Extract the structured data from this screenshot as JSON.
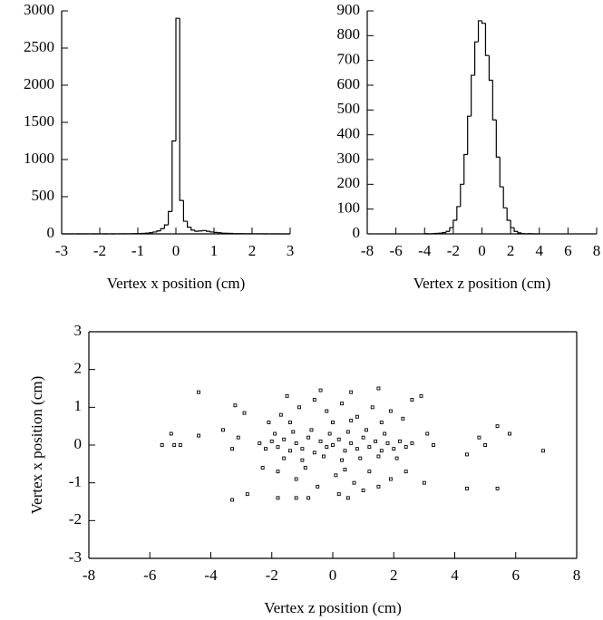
{
  "chart_data": [
    {
      "type": "histogram",
      "xlabel": "Vertex x position (cm)",
      "bins": [
        -3,
        -2.9,
        -2.8,
        -2.7,
        -2.6,
        -2.5,
        -2.4,
        -2.3,
        -2.2,
        -2.1,
        -2,
        -1.9,
        -1.8,
        -1.7,
        -1.6,
        -1.5,
        -1.4,
        -1.3,
        -1.2,
        -1.1,
        -1,
        -0.9,
        -0.8,
        -0.7,
        -0.6,
        -0.5,
        -0.4,
        -0.3,
        -0.2,
        -0.1,
        0,
        0.1,
        0.2,
        0.3,
        0.4,
        0.5,
        0.6,
        0.7,
        0.8,
        0.9,
        1,
        1.1,
        1.2,
        1.3,
        1.4,
        1.5,
        1.6,
        1.7,
        1.8,
        1.9,
        2,
        2.1,
        2.2,
        2.3,
        2.4,
        2.5,
        2.6,
        2.7,
        2.8,
        2.9,
        3
      ],
      "values": [
        0,
        0,
        0,
        1,
        0,
        0,
        0,
        1,
        0,
        0,
        1,
        0,
        1,
        0,
        1,
        1,
        2,
        1,
        2,
        3,
        4,
        6,
        10,
        15,
        25,
        40,
        70,
        120,
        300,
        1250,
        2900,
        450,
        170,
        90,
        50,
        35,
        40,
        45,
        35,
        25,
        20,
        15,
        10,
        8,
        6,
        4,
        3,
        3,
        2,
        2,
        1,
        1,
        1,
        0,
        1,
        0,
        0,
        0,
        0,
        0
      ],
      "color": "#000000",
      "xlim": [
        -3,
        3
      ],
      "xticks": [
        -3,
        -2,
        -1,
        0,
        1,
        2,
        3
      ],
      "ylim": [
        0,
        3000
      ],
      "yticks": [
        0,
        500,
        1000,
        1500,
        2000,
        2500,
        3000
      ]
    },
    {
      "type": "histogram",
      "xlabel": "Vertex z position (cm)",
      "bins": [
        -4,
        -3.75,
        -3.5,
        -3.25,
        -3,
        -2.75,
        -2.5,
        -2.25,
        -2,
        -1.75,
        -1.5,
        -1.25,
        -1,
        -0.75,
        -0.5,
        -0.25,
        0,
        0.25,
        0.5,
        0.75,
        1,
        1.25,
        1.5,
        1.75,
        2,
        2.25,
        2.5,
        2.75,
        3,
        3.25,
        3.5,
        3.75,
        4
      ],
      "values": [
        1,
        0,
        1,
        2,
        3,
        5,
        10,
        25,
        55,
        110,
        200,
        320,
        475,
        640,
        775,
        860,
        850,
        720,
        620,
        460,
        310,
        190,
        105,
        55,
        25,
        10,
        4,
        1,
        0,
        1,
        0,
        0
      ],
      "color": "#000000",
      "xlim": [
        -8,
        8
      ],
      "xticks": [
        -8,
        -6,
        -4,
        -2,
        0,
        2,
        4,
        6,
        8
      ],
      "ylim": [
        0,
        900
      ],
      "yticks": [
        0,
        100,
        200,
        300,
        400,
        500,
        600,
        700,
        800,
        900
      ]
    },
    {
      "type": "scatter",
      "xlabel": "Vertex z position (cm)",
      "ylabel": "Vertex x position (cm)",
      "color": "#000000",
      "x": [
        -5.6,
        -5.3,
        -5.0,
        -5.2,
        -4.4,
        -4.4,
        -3.6,
        -3.3,
        -3.2,
        -2.9,
        -2.8,
        -3.3,
        -3.1,
        4.4,
        4.4,
        4.8,
        5.0,
        5.4,
        5.4,
        5.8,
        6.9,
        3.3,
        3.1,
        2.9,
        2.6,
        3.0,
        -1.8,
        -1.2,
        -0.8,
        0.5,
        0.2,
        1.0,
        1.5,
        0.6,
        -0.4,
        -1.5,
        -2.4,
        -2.2,
        -2.0,
        -1.8,
        -1.6,
        -1.4,
        -1.2,
        -1.0,
        -0.8,
        -0.6,
        -0.4,
        -0.2,
        0,
        0.2,
        0.4,
        0.6,
        0.8,
        1.0,
        1.2,
        1.4,
        1.6,
        1.8,
        2.0,
        2.2,
        2.4,
        2.6,
        -1.9,
        -1.3,
        -0.7,
        -0.1,
        0.5,
        1.1,
        1.7,
        -1.6,
        -1.0,
        -0.3,
        0.3,
        0.9,
        1.5,
        2.1,
        -1.7,
        -1.1,
        -0.6,
        -0.2,
        0.3,
        0.8,
        1.3,
        1.9,
        -2.1,
        -1.4,
        0.0,
        0.6,
        1.6,
        2.3,
        -1.8,
        -1.2,
        -0.5,
        0.1,
        0.7,
        1.2,
        1.9,
        -2.3,
        -0.9,
        0.4,
        1.5,
        2.4
      ],
      "values": [
        0.0,
        0.3,
        0.0,
        0.0,
        1.4,
        0.25,
        0.4,
        -1.45,
        1.05,
        0.85,
        -1.3,
        -0.1,
        0.2,
        -0.25,
        -1.15,
        0.2,
        0.0,
        0.5,
        -1.15,
        0.3,
        -0.15,
        0.0,
        0.3,
        1.3,
        1.2,
        -1.0,
        -1.4,
        -1.4,
        -1.4,
        -1.4,
        -1.3,
        -1.2,
        1.5,
        1.4,
        1.45,
        1.3,
        0.05,
        -0.1,
        0.1,
        -0.05,
        0.15,
        -0.15,
        0.05,
        -0.1,
        0.2,
        -0.2,
        0.1,
        -0.05,
        0.0,
        0.15,
        -0.15,
        0.05,
        -0.1,
        0.2,
        -0.05,
        0.1,
        -0.15,
        0.05,
        -0.1,
        0.1,
        -0.05,
        0.05,
        0.3,
        0.35,
        0.4,
        0.3,
        0.35,
        0.4,
        0.3,
        -0.35,
        -0.4,
        -0.3,
        -0.4,
        -0.35,
        -0.3,
        -0.35,
        0.8,
        1.0,
        1.2,
        0.9,
        1.1,
        0.75,
        1.0,
        0.9,
        0.6,
        0.6,
        0.6,
        0.65,
        0.6,
        0.7,
        -0.7,
        -0.9,
        -1.1,
        -0.8,
        -1.0,
        -0.7,
        -0.9,
        -0.6,
        -0.6,
        -0.65,
        -1.1,
        -0.7
      ],
      "xlim": [
        -8,
        8
      ],
      "xticks": [
        -8,
        -6,
        -4,
        -2,
        0,
        2,
        4,
        6,
        8
      ],
      "ylim": [
        -3,
        3
      ],
      "yticks": [
        -3,
        -2,
        -1,
        0,
        1,
        2,
        3
      ]
    }
  ]
}
